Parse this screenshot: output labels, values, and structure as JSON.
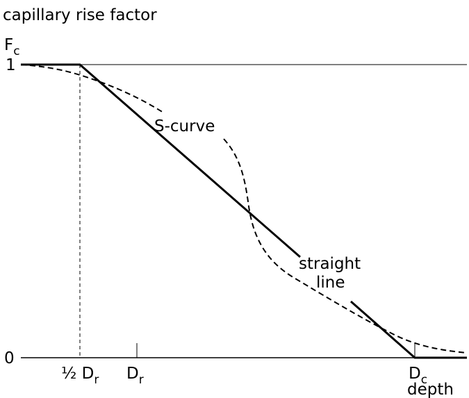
{
  "title": "capillary rise factor",
  "y_axis": {
    "symbol": "F",
    "subscript": "c",
    "top_label": "1",
    "bottom_label": "0"
  },
  "x_axis": {
    "half_root": {
      "prefix": "½ D",
      "subscript": "r"
    },
    "root": {
      "symbol": "D",
      "subscript": "r"
    },
    "critical": {
      "symbol": "D",
      "subscript": "c"
    },
    "label": "depth"
  },
  "curves": {
    "s_curve": "S-curve",
    "straight_line": [
      "straight",
      "line"
    ]
  }
}
